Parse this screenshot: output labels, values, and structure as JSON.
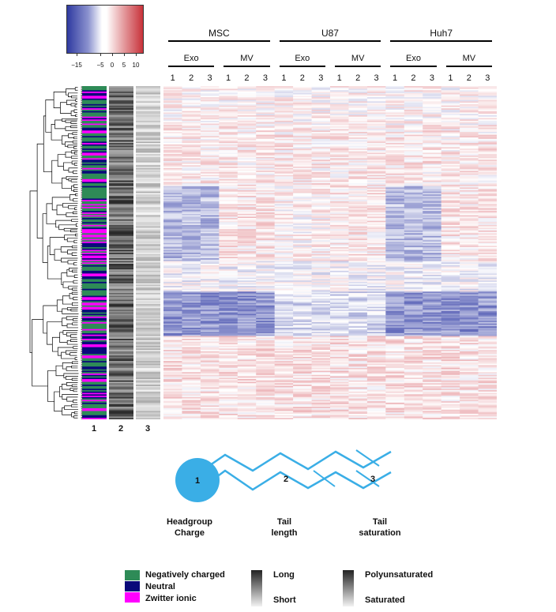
{
  "chart_data": {
    "type": "heatmap",
    "colorbar": {
      "ticks": [
        "−15",
        "−5",
        "0",
        "5",
        "10"
      ],
      "tick_values": [
        -15,
        -5,
        0,
        5,
        10
      ],
      "range": [
        -19,
        13
      ],
      "low_color": "#2f3aa0",
      "mid_color": "#ffffff",
      "high_color": "#c8323a"
    },
    "groups": [
      {
        "name": "MSC",
        "subgroups": [
          {
            "name": "Exo",
            "replicates": [
              "1",
              "2",
              "3"
            ]
          },
          {
            "name": "MV",
            "replicates": [
              "1",
              "2",
              "3"
            ]
          }
        ]
      },
      {
        "name": "U87",
        "subgroups": [
          {
            "name": "Exo",
            "replicates": [
              "1",
              "2",
              "3"
            ]
          },
          {
            "name": "MV",
            "replicates": [
              "1",
              "2",
              "3"
            ]
          }
        ]
      },
      {
        "name": "Huh7",
        "subgroups": [
          {
            "name": "Exo",
            "replicates": [
              "1",
              "2",
              "3"
            ]
          },
          {
            "name": "MV",
            "replicates": [
              "1",
              "2",
              "3"
            ]
          }
        ]
      }
    ],
    "annotation_columns": [
      "1",
      "2",
      "3"
    ],
    "row_count": 240,
    "cluster_bands": [
      {
        "from_row": 0,
        "to_row": 28,
        "pattern": "mixed light"
      },
      {
        "from_row": 28,
        "to_row": 72,
        "pattern": "pale red"
      },
      {
        "from_row": 72,
        "to_row": 126,
        "pattern": "blue in Exo, light red in MV"
      },
      {
        "from_row": 126,
        "to_row": 148,
        "pattern": "mixed"
      },
      {
        "from_row": 148,
        "to_row": 180,
        "pattern": "strong blue"
      },
      {
        "from_row": 180,
        "to_row": 240,
        "pattern": "pale red"
      }
    ]
  },
  "diagram": {
    "head_label": "1",
    "tail_label_2": "2",
    "tail_label_3": "3",
    "captions": [
      {
        "line1": "Headgroup",
        "line2": "Charge"
      },
      {
        "line1": "Tail",
        "line2": "length"
      },
      {
        "line1": "Tail",
        "line2": "saturation"
      }
    ],
    "color": "#3aaee6"
  },
  "legend": {
    "charge": [
      {
        "label": "Negatively charged",
        "color": "#2e8b57"
      },
      {
        "label": "Neutral",
        "color": "#0a0a7a"
      },
      {
        "label": "Zwitter ionic",
        "color": "#ff00ff"
      }
    ],
    "length": {
      "top": "Long",
      "bottom": "Short"
    },
    "saturation": {
      "top": "Polyunsaturated",
      "bottom": "Saturated"
    }
  }
}
